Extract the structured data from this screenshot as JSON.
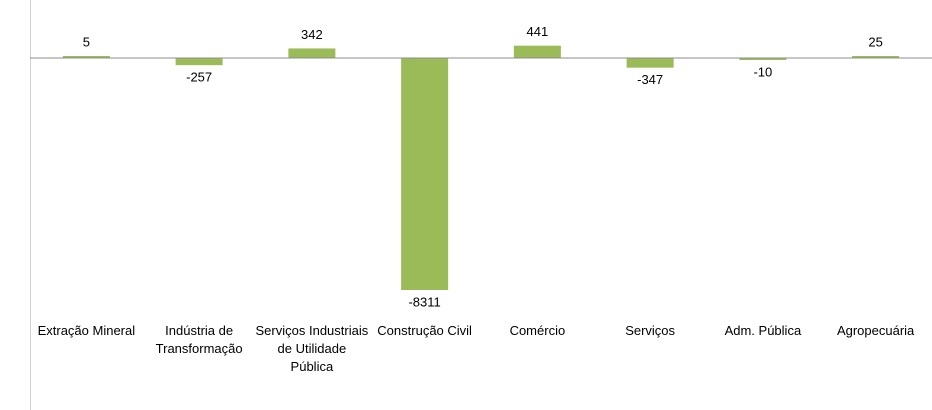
{
  "chart_data": {
    "type": "bar",
    "categories": [
      "Extração Mineral",
      "Indústria de Transformação",
      "Serviços Industriais de Utilidade Pública",
      "Construção Civil",
      "Comércio",
      "Serviços",
      "Adm. Pública",
      "Agropecuária"
    ],
    "values": [
      5,
      -257,
      342,
      -8311,
      441,
      -347,
      -10,
      25
    ],
    "color": "#9bbb59"
  }
}
